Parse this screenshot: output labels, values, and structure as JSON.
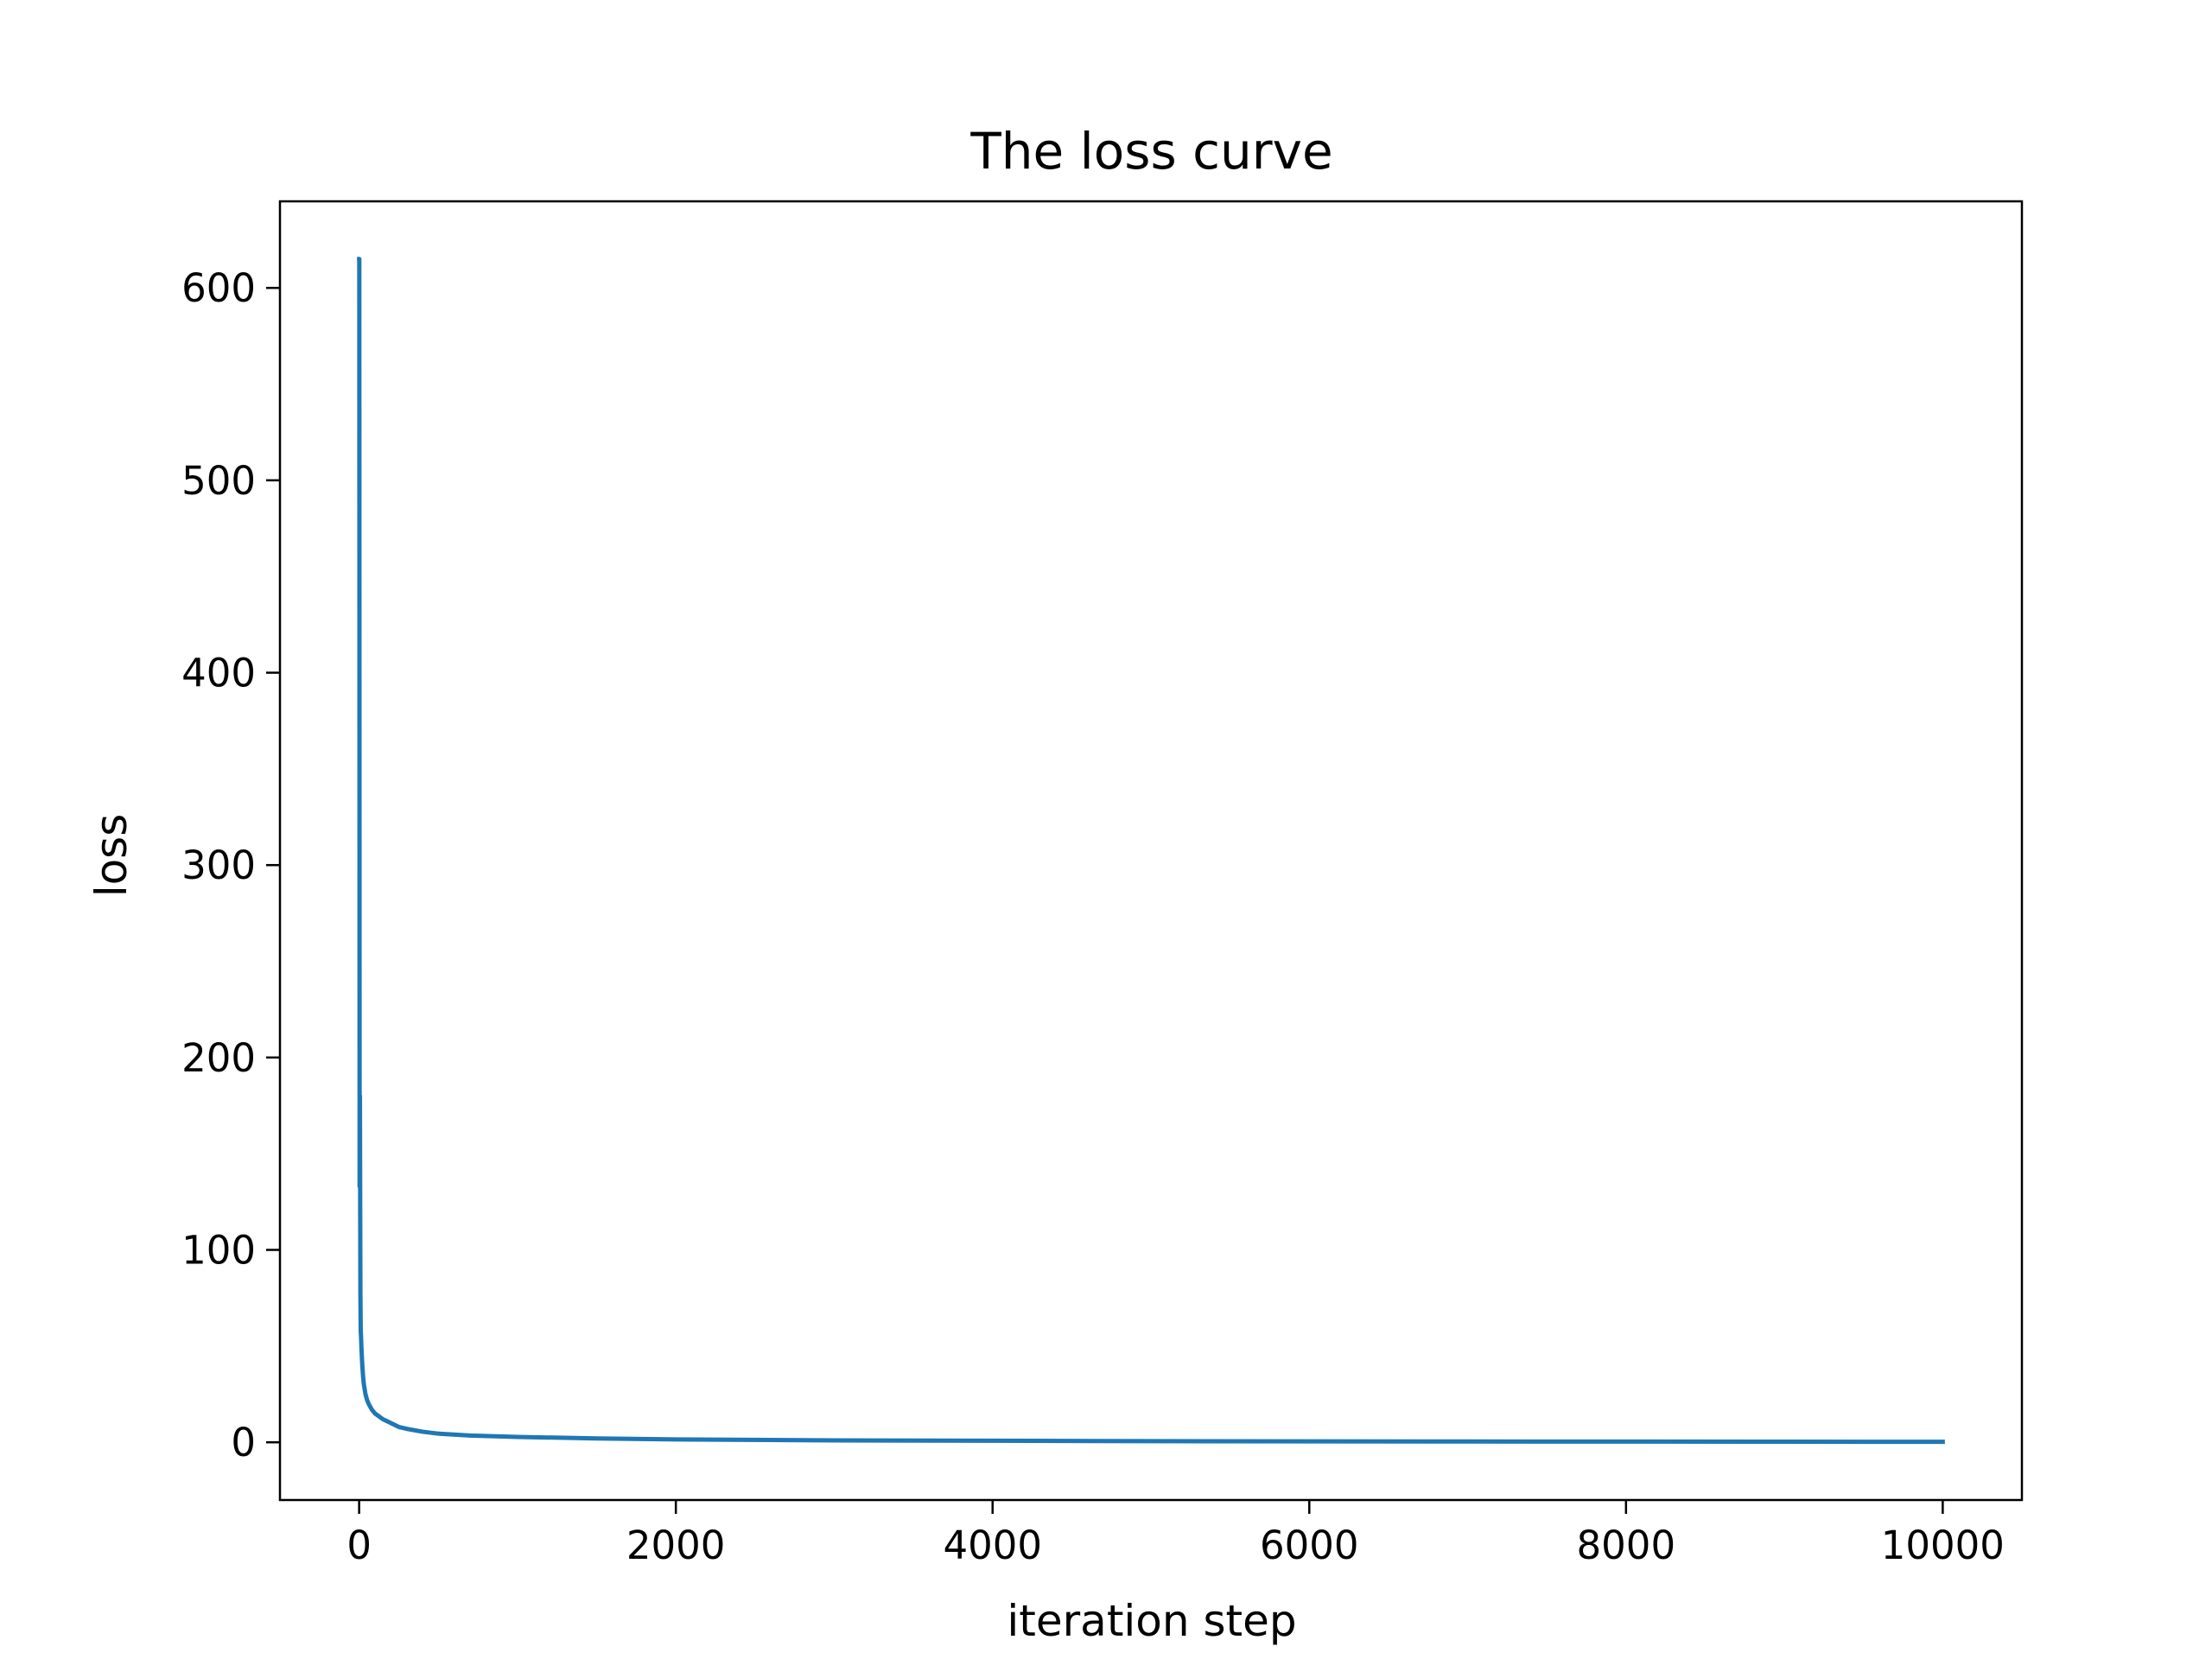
{
  "chart_data": {
    "type": "line",
    "title": "The loss curve",
    "xlabel": "iteration step",
    "ylabel": "loss",
    "xlim": [
      -500,
      10500
    ],
    "ylim": [
      -30,
      645
    ],
    "xticks": [
      0,
      2000,
      4000,
      6000,
      8000,
      10000
    ],
    "xtick_labels": [
      "0",
      "2000",
      "4000",
      "6000",
      "8000",
      "10000"
    ],
    "yticks": [
      0,
      100,
      200,
      300,
      400,
      500,
      600
    ],
    "ytick_labels": [
      "0",
      "100",
      "200",
      "300",
      "400",
      "500",
      "600"
    ],
    "grid": false,
    "legend": "none",
    "series": [
      {
        "color": "#1f77b4",
        "x": [
          0,
          1,
          2,
          3,
          5,
          8,
          10,
          12,
          15,
          20,
          25,
          30,
          40,
          50,
          60,
          80,
          100,
          150,
          200,
          250,
          300,
          400,
          500,
          700,
          1000,
          1500,
          2000,
          3000,
          4000,
          5000,
          6000,
          7000,
          8000,
          9000,
          10000
        ],
        "y": [
          615,
          615,
          400,
          133,
          180,
          78,
          58,
          55,
          48,
          40,
          34,
          30,
          25,
          22,
          20,
          17,
          15,
          12,
          10,
          8,
          7,
          5.5,
          4.5,
          3.5,
          2.8,
          2,
          1.5,
          1,
          0.8,
          0.6,
          0.5,
          0.4,
          0.35,
          0.3,
          0.25
        ]
      }
    ]
  }
}
